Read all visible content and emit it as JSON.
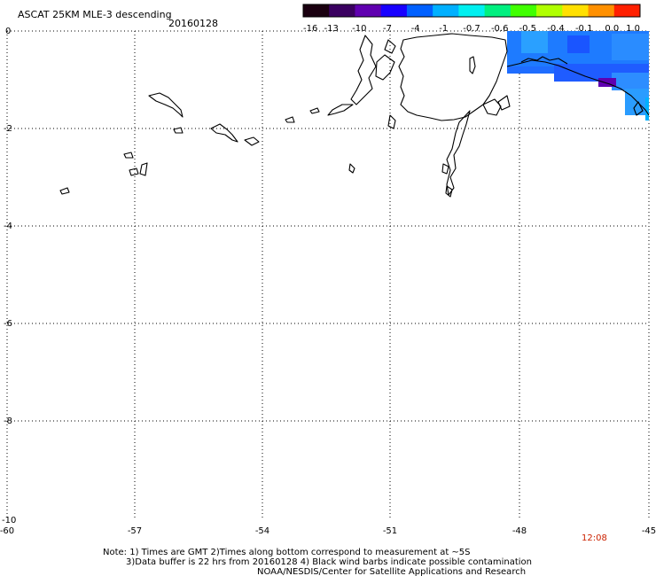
{
  "title": "ASCAT 25KM MLE-3 descending",
  "date": "20160128",
  "colorbar": {
    "labels": [
      "-16",
      "-13",
      "-10",
      "-7",
      "-4",
      "-1",
      "-0.7",
      "-0.6",
      "-0.5",
      "-0.4",
      "-0.1",
      "0.0",
      "1.0"
    ],
    "colors": [
      "#1a0010",
      "#3a0060",
      "#6000b0",
      "#1800ff",
      "#0060ff",
      "#00b0ff",
      "#00f0f0",
      "#00f080",
      "#40ff00",
      "#b0ff00",
      "#ffe000",
      "#ff9000",
      "#ff2000"
    ]
  },
  "map": {
    "x_ticks": [
      "-60",
      "-57",
      "-54",
      "-51",
      "-48",
      "-45"
    ],
    "y_ticks": [
      "0",
      "-2",
      "-4",
      "-6",
      "-8",
      "-10"
    ],
    "lon_range": [
      -60,
      -45
    ],
    "lat_range": [
      -10,
      0
    ],
    "time_label": "12:08",
    "time_color": "#cc2200"
  },
  "notes": {
    "line1": "Note: 1) Times are GMT 2)Times along bottom correspond to measurement at ~5S",
    "line2": "3)Data buffer is 22 hrs from 20160128 4) Black wind barbs indicate possible contamination",
    "line3": "NOAA/NESDIS/Center for Satellite Applications and Research"
  }
}
